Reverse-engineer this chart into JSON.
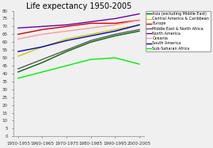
{
  "title": "Life expectancy 1950-2005",
  "x_labels": [
    "1950-1955",
    "1960-1965",
    "1970-1975",
    "1980-1985",
    "1990-1995",
    "2000-2005"
  ],
  "x_values": [
    0,
    1,
    2,
    3,
    4,
    5
  ],
  "ylim": [
    0,
    80
  ],
  "yticks": [
    0,
    5,
    10,
    15,
    20,
    25,
    30,
    35,
    40,
    45,
    50,
    55,
    60,
    65,
    70,
    75,
    80
  ],
  "series": [
    {
      "name": "Asia (excluding Middle East)",
      "color": "#006400",
      "values": [
        41,
        47,
        54,
        60,
        64,
        67
      ]
    },
    {
      "name": "Central America & Caribbean",
      "color": "#cccc00",
      "values": [
        51,
        57,
        62,
        65,
        68,
        71
      ]
    },
    {
      "name": "Europe",
      "color": "#cc0000",
      "values": [
        65,
        68,
        70,
        72,
        72,
        74
      ]
    },
    {
      "name": "Middle East & North Africa",
      "color": "#555555",
      "values": [
        43,
        49,
        55,
        61,
        65,
        68
      ]
    },
    {
      "name": "North America",
      "color": "#6600aa",
      "values": [
        69,
        70,
        71,
        73,
        75,
        78
      ]
    },
    {
      "name": "Oceania",
      "color": "#ff9999",
      "values": [
        62,
        65,
        67,
        69,
        71,
        74
      ]
    },
    {
      "name": "South America",
      "color": "#0000cc",
      "values": [
        54,
        57,
        61,
        64,
        67,
        71
      ]
    },
    {
      "name": "Sub-Saharan Africa",
      "color": "#00ee00",
      "values": [
        37,
        41,
        45,
        49,
        50,
        46
      ]
    }
  ],
  "bg_color": "#f0f0f0",
  "title_fontsize": 7,
  "tick_fontsize": 4,
  "legend_fontsize": 3.5,
  "linewidth": 1.0
}
